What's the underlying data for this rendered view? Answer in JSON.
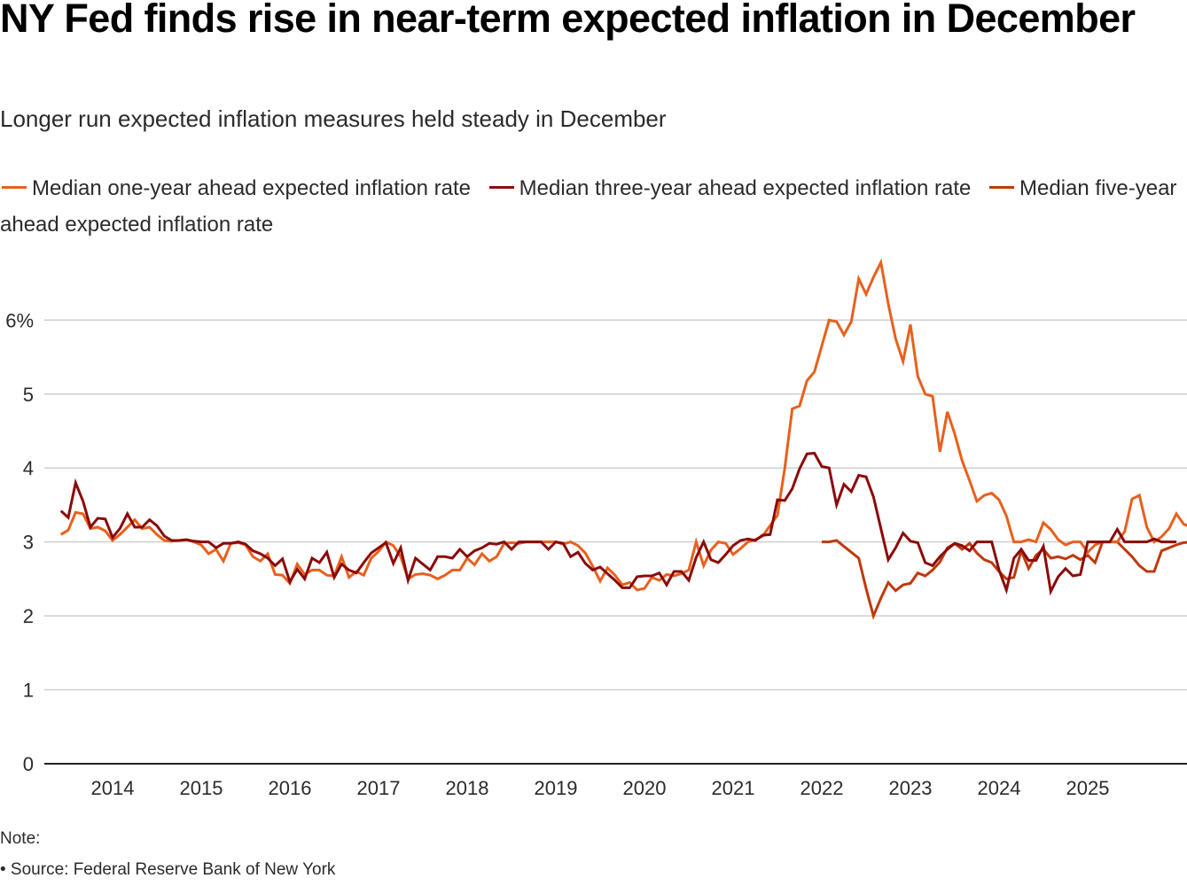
{
  "header": {
    "title": "NY Fed finds rise in near-term expected inflation in December",
    "subtitle": "Longer run expected inflation measures held steady in December"
  },
  "legend": [
    {
      "label": "Median one-year ahead expected inflation rate",
      "color": "#e8601c"
    },
    {
      "label": "Median three-year ahead expected inflation rate",
      "color": "#8b0a0a"
    },
    {
      "label": "Median five-year ahead expected inflation rate",
      "color": "#c0390b"
    }
  ],
  "footer": {
    "note": "Note:",
    "source": "• Source: Federal Reserve Bank of New York"
  },
  "chart_data": {
    "type": "line",
    "title": "NY Fed finds rise in near-term expected inflation in December",
    "subtitle": "Longer run expected inflation measures held steady in December",
    "xlabel": "",
    "ylabel": "",
    "x_start": "2013-06",
    "x_end": "2025-12",
    "frequency": "monthly",
    "x_ticks": [
      "2014",
      "2015",
      "2016",
      "2017",
      "2018",
      "2019",
      "2020",
      "2021",
      "2022",
      "2023",
      "2024",
      "2025"
    ],
    "y_ticks": [
      "0",
      "1",
      "2",
      "3",
      "4",
      "5",
      "6%"
    ],
    "y_tick_values": [
      0,
      1,
      2,
      3,
      4,
      5,
      6
    ],
    "ylim": [
      0,
      6.8
    ],
    "grid": true,
    "legend_position": "top",
    "series": [
      {
        "name": "Median one-year ahead expected inflation rate",
        "color": "#e8601c",
        "start": "2013-06",
        "values": [
          3.1,
          3.16,
          3.4,
          3.38,
          3.18,
          3.2,
          3.15,
          3.02,
          3.1,
          3.2,
          3.3,
          3.18,
          3.2,
          3.1,
          3.02,
          3.01,
          3.02,
          3.03,
          3.0,
          2.96,
          2.84,
          2.9,
          2.74,
          2.98,
          2.99,
          2.96,
          2.8,
          2.74,
          2.84,
          2.56,
          2.55,
          2.44,
          2.7,
          2.56,
          2.62,
          2.62,
          2.55,
          2.54,
          2.8,
          2.52,
          2.6,
          2.55,
          2.78,
          2.87,
          3.0,
          2.95,
          2.8,
          2.5,
          2.56,
          2.57,
          2.55,
          2.5,
          2.55,
          2.62,
          2.62,
          2.78,
          2.69,
          2.84,
          2.74,
          2.8,
          2.98,
          2.99,
          2.98,
          3.0,
          3.0,
          3.0,
          3.0,
          3.0,
          2.97,
          3.0,
          2.95,
          2.85,
          2.67,
          2.47,
          2.65,
          2.55,
          2.42,
          2.45,
          2.35,
          2.37,
          2.52,
          2.48,
          2.56,
          2.54,
          2.57,
          2.62,
          3.0,
          2.68,
          2.89,
          3.0,
          2.98,
          2.83,
          2.91,
          3.0,
          3.03,
          3.08,
          3.22,
          3.36,
          4.0,
          4.8,
          4.84,
          5.18,
          5.3,
          5.65,
          6.0,
          5.98,
          5.8,
          5.98,
          6.56,
          6.35,
          6.58,
          6.78,
          6.22,
          5.75,
          5.44,
          5.94,
          5.24,
          5.0,
          4.97,
          4.22,
          4.76,
          4.46,
          4.1,
          3.83,
          3.55,
          3.63,
          3.66,
          3.57,
          3.35,
          3.0,
          3.0,
          3.03,
          3.0,
          3.26,
          3.17,
          3.03,
          2.96,
          3.0,
          3.0,
          2.86,
          2.96,
          3.0,
          3.0,
          3.0,
          3.14,
          3.58,
          3.63,
          3.2,
          3.0,
          3.07,
          3.18,
          3.38,
          3.24,
          3.2,
          3.42
        ]
      },
      {
        "name": "Median three-year ahead expected inflation rate",
        "color": "#8b0a0a",
        "start": "2013-06",
        "values": [
          3.42,
          3.33,
          3.8,
          3.55,
          3.2,
          3.32,
          3.31,
          3.06,
          3.18,
          3.38,
          3.2,
          3.2,
          3.3,
          3.22,
          3.08,
          3.02,
          3.02,
          3.03,
          3.01,
          3.0,
          3.0,
          2.92,
          2.98,
          2.98,
          3.0,
          2.97,
          2.88,
          2.84,
          2.78,
          2.68,
          2.77,
          2.46,
          2.63,
          2.5,
          2.78,
          2.72,
          2.86,
          2.52,
          2.7,
          2.62,
          2.58,
          2.72,
          2.85,
          2.92,
          2.99,
          2.71,
          2.92,
          2.48,
          2.78,
          2.7,
          2.62,
          2.8,
          2.8,
          2.78,
          2.9,
          2.8,
          2.88,
          2.92,
          2.98,
          2.97,
          3.0,
          2.9,
          3.0,
          3.0,
          3.0,
          3.0,
          2.9,
          3.0,
          2.98,
          2.8,
          2.86,
          2.71,
          2.62,
          2.66,
          2.57,
          2.48,
          2.38,
          2.38,
          2.53,
          2.54,
          2.54,
          2.58,
          2.42,
          2.6,
          2.6,
          2.48,
          2.79,
          3.0,
          2.76,
          2.72,
          2.83,
          2.95,
          3.02,
          3.04,
          3.02,
          3.09,
          3.1,
          3.57,
          3.56,
          3.72,
          3.99,
          4.19,
          4.2,
          4.02,
          4.0,
          3.5,
          3.78,
          3.68,
          3.9,
          3.88,
          3.61,
          3.18,
          2.76,
          2.92,
          3.12,
          3.01,
          2.99,
          2.72,
          2.68,
          2.8,
          2.9,
          2.98,
          2.95,
          2.88,
          3.0,
          3.0,
          3.0,
          2.62,
          2.35,
          2.78,
          2.9,
          2.75,
          2.75,
          2.94,
          2.33,
          2.53,
          2.64,
          2.54,
          2.56,
          3.0,
          3.0,
          3.0,
          3.0,
          3.17,
          3.0,
          3.0,
          3.0,
          3.0,
          3.04,
          3.0,
          3.0,
          3.0
        ]
      },
      {
        "name": "Median five-year ahead expected inflation rate",
        "color": "#c0390b",
        "start": "2022-01",
        "values": [
          3.0,
          3.0,
          3.02,
          2.94,
          2.86,
          2.78,
          2.37,
          2.0,
          2.24,
          2.45,
          2.34,
          2.42,
          2.44,
          2.58,
          2.54,
          2.62,
          2.73,
          2.92,
          2.98,
          2.9,
          2.98,
          2.85,
          2.76,
          2.72,
          2.6,
          2.5,
          2.52,
          2.88,
          2.64,
          2.82,
          2.9,
          2.78,
          2.8,
          2.77,
          2.82,
          2.76,
          2.82,
          2.72,
          3.0,
          3.0,
          3.0,
          2.9,
          2.8,
          2.68,
          2.6,
          2.6,
          2.88,
          2.92,
          2.96,
          2.99,
          3.0,
          3.0,
          2.99
        ]
      }
    ]
  }
}
